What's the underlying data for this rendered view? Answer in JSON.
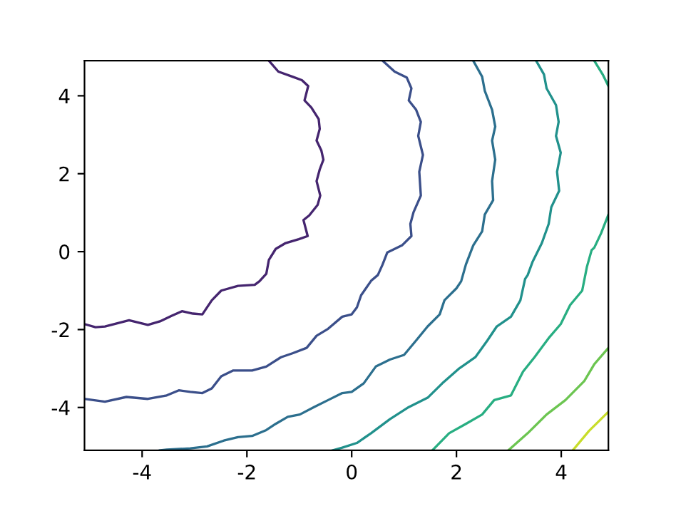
{
  "chart_data": {
    "type": "line",
    "xlim": [
      -5.1,
      4.9
    ],
    "ylim": [
      -5.1,
      4.9
    ],
    "xticks": [
      -4,
      -2,
      0,
      2,
      4
    ],
    "yticks": [
      -4,
      -2,
      0,
      2,
      4
    ],
    "grid": false,
    "legend": false,
    "series": [
      {
        "color": "#45256f",
        "x": [
          -1.58,
          -1.4,
          -1.13,
          -0.95,
          -0.83,
          -0.9,
          -0.77,
          -0.63,
          -0.61,
          -0.67,
          -0.58,
          -0.54,
          -0.61,
          -0.67,
          -0.6,
          -0.65,
          -0.81,
          -0.92,
          -0.84,
          -1.01,
          -1.26,
          -1.45,
          -1.58,
          -1.63,
          -1.76,
          -1.85,
          -2.17,
          -2.49,
          -2.67,
          -2.85,
          -3.03,
          -3.24,
          -3.44,
          -3.66,
          -3.89,
          -4.25,
          -4.71,
          -4.89,
          -5.1
        ],
        "values": [
          4.9,
          4.62,
          4.49,
          4.4,
          4.25,
          3.88,
          3.7,
          3.4,
          3.15,
          2.85,
          2.6,
          2.36,
          2.11,
          1.81,
          1.44,
          1.2,
          0.93,
          0.81,
          0.4,
          0.32,
          0.22,
          0.07,
          -0.21,
          -0.57,
          -0.76,
          -0.85,
          -0.88,
          -1.0,
          -1.25,
          -1.61,
          -1.59,
          -1.53,
          -1.65,
          -1.79,
          -1.88,
          -1.76,
          -1.92,
          -1.94,
          -1.86
        ]
      },
      {
        "color": "#3b4f8a",
        "x": [
          0.59,
          0.82,
          1.05,
          1.14,
          1.09,
          1.23,
          1.32,
          1.27,
          1.36,
          1.29,
          1.32,
          1.18,
          1.12,
          1.14,
          0.96,
          0.68,
          0.59,
          0.5,
          0.37,
          0.18,
          0.1,
          0.0,
          -0.18,
          -0.45,
          -0.67,
          -0.86,
          -1.13,
          -1.35,
          -1.63,
          -1.9,
          -2.26,
          -2.49,
          -2.67,
          -2.85,
          -3.08,
          -3.3,
          -3.53,
          -3.89,
          -4.3,
          -4.71,
          -5.1
        ],
        "values": [
          4.9,
          4.62,
          4.47,
          4.19,
          3.88,
          3.64,
          3.33,
          2.97,
          2.48,
          2.05,
          1.44,
          1.01,
          0.71,
          0.4,
          0.16,
          -0.02,
          -0.33,
          -0.6,
          -0.75,
          -1.12,
          -1.43,
          -1.61,
          -1.67,
          -1.98,
          -2.16,
          -2.47,
          -2.61,
          -2.71,
          -2.95,
          -3.05,
          -3.05,
          -3.2,
          -3.51,
          -3.63,
          -3.6,
          -3.56,
          -3.69,
          -3.78,
          -3.73,
          -3.85,
          -3.78
        ]
      },
      {
        "color": "#2c6f8e",
        "x": [
          2.32,
          2.49,
          2.54,
          2.68,
          2.74,
          2.68,
          2.74,
          2.68,
          2.7,
          2.54,
          2.49,
          2.32,
          2.18,
          2.09,
          2.0,
          1.77,
          1.68,
          1.45,
          1.23,
          1.0,
          0.73,
          0.46,
          0.23,
          0.0,
          -0.18,
          -0.45,
          -0.72,
          -0.99,
          -1.22,
          -1.45,
          -1.63,
          -1.9,
          -2.17,
          -2.44,
          -2.76,
          -3.08,
          -3.53,
          -3.66
        ],
        "values": [
          4.9,
          4.49,
          4.13,
          3.64,
          3.21,
          2.85,
          2.36,
          1.81,
          1.32,
          0.95,
          0.52,
          0.16,
          -0.33,
          -0.76,
          -0.94,
          -1.25,
          -1.61,
          -1.92,
          -2.28,
          -2.65,
          -2.77,
          -2.95,
          -3.38,
          -3.6,
          -3.63,
          -3.81,
          -3.99,
          -4.18,
          -4.24,
          -4.42,
          -4.58,
          -4.73,
          -4.76,
          -4.85,
          -5.0,
          -5.05,
          -5.08,
          -5.1
        ]
      },
      {
        "color": "#21918c",
        "x": [
          3.52,
          3.67,
          3.72,
          3.9,
          3.95,
          3.9,
          3.99,
          3.92,
          3.96,
          3.81,
          3.76,
          3.63,
          3.45,
          3.36,
          3.31,
          3.22,
          3.04,
          2.77,
          2.59,
          2.36,
          2.04,
          1.73,
          1.45,
          1.09,
          0.73,
          0.37,
          0.1,
          -0.18,
          -0.36
        ],
        "values": [
          4.9,
          4.55,
          4.19,
          3.76,
          3.33,
          2.97,
          2.54,
          2.05,
          1.56,
          1.14,
          0.71,
          0.22,
          -0.27,
          -0.6,
          -0.7,
          -1.25,
          -1.67,
          -1.92,
          -2.28,
          -2.71,
          -3.01,
          -3.38,
          -3.75,
          -3.99,
          -4.3,
          -4.66,
          -4.91,
          -5.03,
          -5.1
        ]
      },
      {
        "color": "#27ad81",
        "x": [
          4.63,
          4.79,
          4.9
        ],
        "values": [
          4.9,
          4.55,
          4.25
        ]
      },
      {
        "color": "#28ae82",
        "x": [
          4.9,
          4.76,
          4.63,
          4.58,
          4.49,
          4.4,
          4.17,
          3.99,
          3.76,
          3.49,
          3.27,
          3.04,
          2.72,
          2.49,
          2.18,
          1.86,
          1.54
        ],
        "values": [
          0.95,
          0.47,
          0.1,
          0.04,
          -0.39,
          -1.0,
          -1.37,
          -1.86,
          -2.22,
          -2.71,
          -3.08,
          -3.69,
          -3.81,
          -4.18,
          -4.42,
          -4.66,
          -5.1
        ]
      },
      {
        "color": "#6cc551",
        "x": [
          4.9,
          4.63,
          4.44,
          4.08,
          3.72,
          3.36,
          2.99
        ],
        "values": [
          -2.47,
          -2.89,
          -3.32,
          -3.81,
          -4.18,
          -4.66,
          -5.1
        ]
      },
      {
        "color": "#c8dd2a",
        "x": [
          4.9,
          4.53,
          4.22
        ],
        "values": [
          -4.11,
          -4.6,
          -5.1
        ]
      }
    ]
  }
}
